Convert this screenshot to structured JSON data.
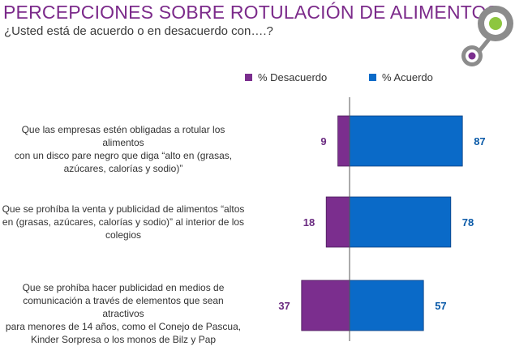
{
  "header": {
    "title": "PERCEPCIONES SOBRE ROTULACIÓN DE ALIMENTOS",
    "subtitle": "¿Usted está de acuerdo o en desacuerdo con….?"
  },
  "colors": {
    "disagree": "#7b2e8e",
    "agree": "#0a6ac8",
    "label_disagree": "#6a2a80",
    "label_agree": "#0a5aa8",
    "title": "#7b2a8a",
    "logo_green": "#8dc63f",
    "logo_gray": "#8c8c8c",
    "logo_purple": "#7b2e8e"
  },
  "chart_data": {
    "type": "bar",
    "orientation": "horizontal-diverging",
    "title": "PERCEPCIONES SOBRE ROTULACIÓN DE ALIMENTOS",
    "legend": [
      "% Desacuerdo",
      "% Acuerdo"
    ],
    "categories": [
      "Que las empresas estén obligadas a rotular los alimentos con un disco pare negro que diga “alto en (grasas, azúcares, calorías y sodio)”",
      "Que se prohíba la venta y publicidad de alimentos “altos en (grasas, azúcares, calorías y sodio)” al interior de los colegios",
      "Que se prohíba hacer publicidad en medios de comunicación a través de elementos que sean atractivos para menores de 14 años, como el Conejo de Pascua, Kinder Sorpresa o los monos de Bilz y Pap"
    ],
    "category_lines": [
      [
        "Que las empresas estén obligadas a rotular los alimentos",
        "con un disco pare negro que diga “alto en (grasas,",
        "azúcares, calorías y sodio)”"
      ],
      [
        "Que se prohíba la venta y publicidad de alimentos “altos",
        "en (grasas, azúcares, calorías y sodio)” al interior de los",
        "colegios"
      ],
      [
        "Que se prohíba hacer publicidad en medios de",
        "comunicación a través de elementos que sean atractivos",
        "para menores de 14 años, como el Conejo de Pascua,",
        "Kinder Sorpresa o los monos de Bilz y Pap"
      ]
    ],
    "series": [
      {
        "name": "% Desacuerdo",
        "values": [
          9,
          18,
          37
        ]
      },
      {
        "name": "% Acuerdo",
        "values": [
          87,
          78,
          57
        ]
      }
    ]
  }
}
